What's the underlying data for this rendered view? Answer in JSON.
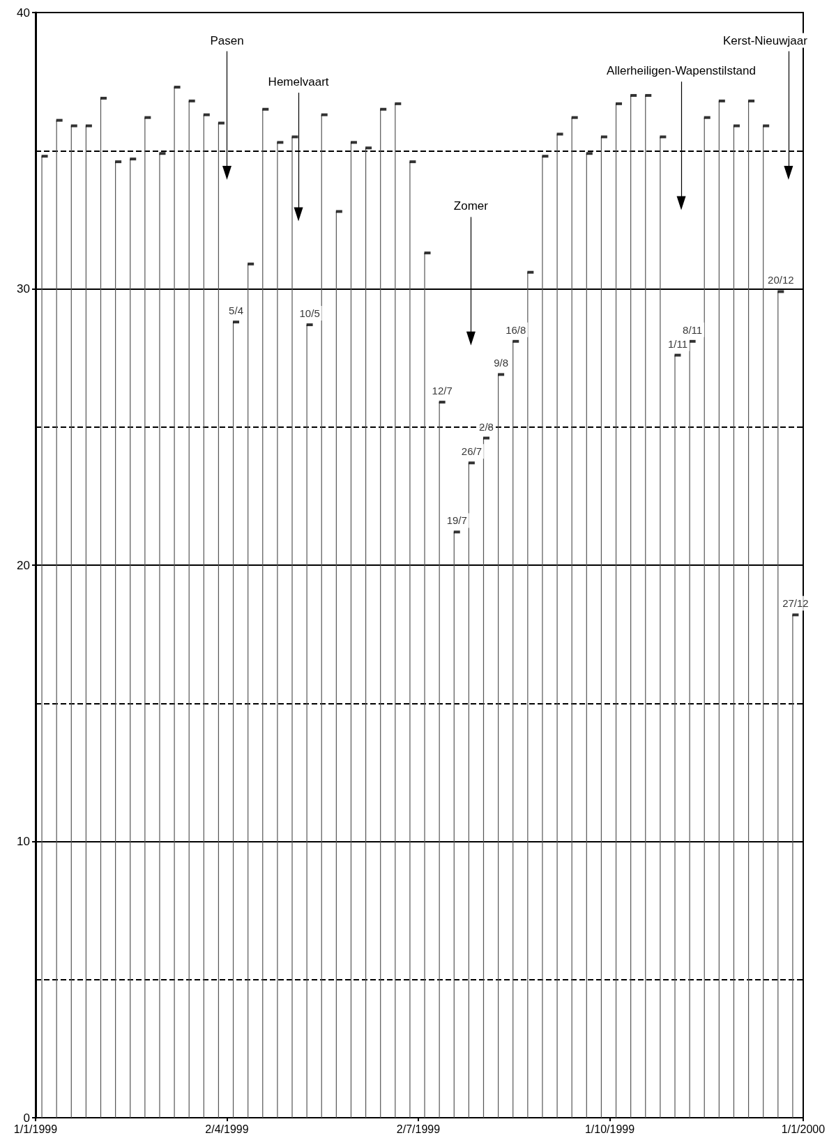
{
  "chart_data": {
    "type": "lollipop",
    "x": [
      "1999-01-04",
      "1999-01-11",
      "1999-01-18",
      "1999-01-25",
      "1999-02-01",
      "1999-02-08",
      "1999-02-15",
      "1999-02-22",
      "1999-03-01",
      "1999-03-08",
      "1999-03-15",
      "1999-03-22",
      "1999-03-29",
      "1999-04-05",
      "1999-04-12",
      "1999-04-19",
      "1999-04-26",
      "1999-05-03",
      "1999-05-10",
      "1999-05-17",
      "1999-05-24",
      "1999-05-31",
      "1999-06-07",
      "1999-06-14",
      "1999-06-21",
      "1999-06-28",
      "1999-07-05",
      "1999-07-12",
      "1999-07-19",
      "1999-07-26",
      "1999-08-02",
      "1999-08-09",
      "1999-08-16",
      "1999-08-23",
      "1999-08-30",
      "1999-09-06",
      "1999-09-13",
      "1999-09-20",
      "1999-09-27",
      "1999-10-04",
      "1999-10-11",
      "1999-10-18",
      "1999-10-25",
      "1999-11-01",
      "1999-11-08",
      "1999-11-15",
      "1999-11-22",
      "1999-11-29",
      "1999-12-06",
      "1999-12-13",
      "1999-12-20",
      "1999-12-27"
    ],
    "values": [
      34.8,
      36.1,
      35.9,
      35.9,
      36.9,
      34.6,
      34.7,
      36.2,
      34.9,
      37.3,
      36.8,
      36.3,
      36.0,
      28.8,
      30.9,
      36.5,
      35.3,
      35.5,
      28.7,
      36.3,
      32.8,
      35.3,
      35.1,
      36.5,
      36.7,
      34.6,
      31.3,
      25.9,
      21.2,
      23.7,
      24.6,
      26.9,
      28.1,
      30.6,
      34.8,
      35.6,
      36.2,
      34.9,
      35.5,
      36.7,
      37.0,
      37.0,
      35.5,
      27.6,
      28.1,
      36.2,
      36.8,
      35.9,
      36.8,
      35.9,
      29.9,
      18.2
    ],
    "color": "#000000",
    "marker": "square",
    "xlim": [
      "1999-01-01",
      "2000-01-01"
    ],
    "xticks": [
      {
        "value": "1999-01-01",
        "label": "1/1/1999"
      },
      {
        "value": "1999-04-02",
        "label": "2/4/1999"
      },
      {
        "value": "1999-07-02",
        "label": "2/7/1999"
      },
      {
        "value": "1999-10-01",
        "label": "1/10/1999"
      },
      {
        "value": "2000-01-01",
        "label": "1/1/2000"
      }
    ],
    "ylim": [
      0,
      40
    ],
    "yticks": [
      0,
      10,
      20,
      30,
      40
    ],
    "grid": "y",
    "ref_lines": [
      {
        "axis": "y",
        "value": 5,
        "line_style": "dashed"
      },
      {
        "axis": "y",
        "value": 15,
        "line_style": "dashed"
      },
      {
        "axis": "y",
        "value": 25,
        "line_style": "dashed"
      },
      {
        "axis": "y",
        "value": 35,
        "line_style": "dashed"
      }
    ],
    "annotations": [
      {
        "text": "Pasen",
        "x": "1999-04-02",
        "y": 34.2
      },
      {
        "text": "Hemelvaart",
        "x": "1999-05-06",
        "y": 32.7
      },
      {
        "text": "Zomer",
        "x": "1999-07-27",
        "y": 28.2
      },
      {
        "text": "Allerheiligen-Wapenstilstand",
        "x": "1999-11-04",
        "y": 33.1
      },
      {
        "text": "Kerst-Nieuwjaar",
        "x": "1999-12-25",
        "y": 34.2
      },
      {
        "text": "5/4",
        "x": "1999-04-05",
        "y": 28.8
      },
      {
        "text": "10/5",
        "x": "1999-05-10",
        "y": 28.7
      },
      {
        "text": "12/7",
        "x": "1999-07-12",
        "y": 25.9
      },
      {
        "text": "19/7",
        "x": "1999-07-19",
        "y": 21.2
      },
      {
        "text": "26/7",
        "x": "1999-07-26",
        "y": 23.7
      },
      {
        "text": "2/8",
        "x": "1999-08-02",
        "y": 24.6
      },
      {
        "text": "9/8",
        "x": "1999-08-09",
        "y": 26.9
      },
      {
        "text": "16/8",
        "x": "1999-08-16",
        "y": 28.1
      },
      {
        "text": "1/11",
        "x": "1999-11-01",
        "y": 27.6
      },
      {
        "text": "8/11",
        "x": "1999-11-08",
        "y": 28.1
      },
      {
        "text": "20/12",
        "x": "1999-12-20",
        "y": 29.9
      },
      {
        "text": "27/12",
        "x": "1999-12-27",
        "y": 18.2
      }
    ]
  }
}
